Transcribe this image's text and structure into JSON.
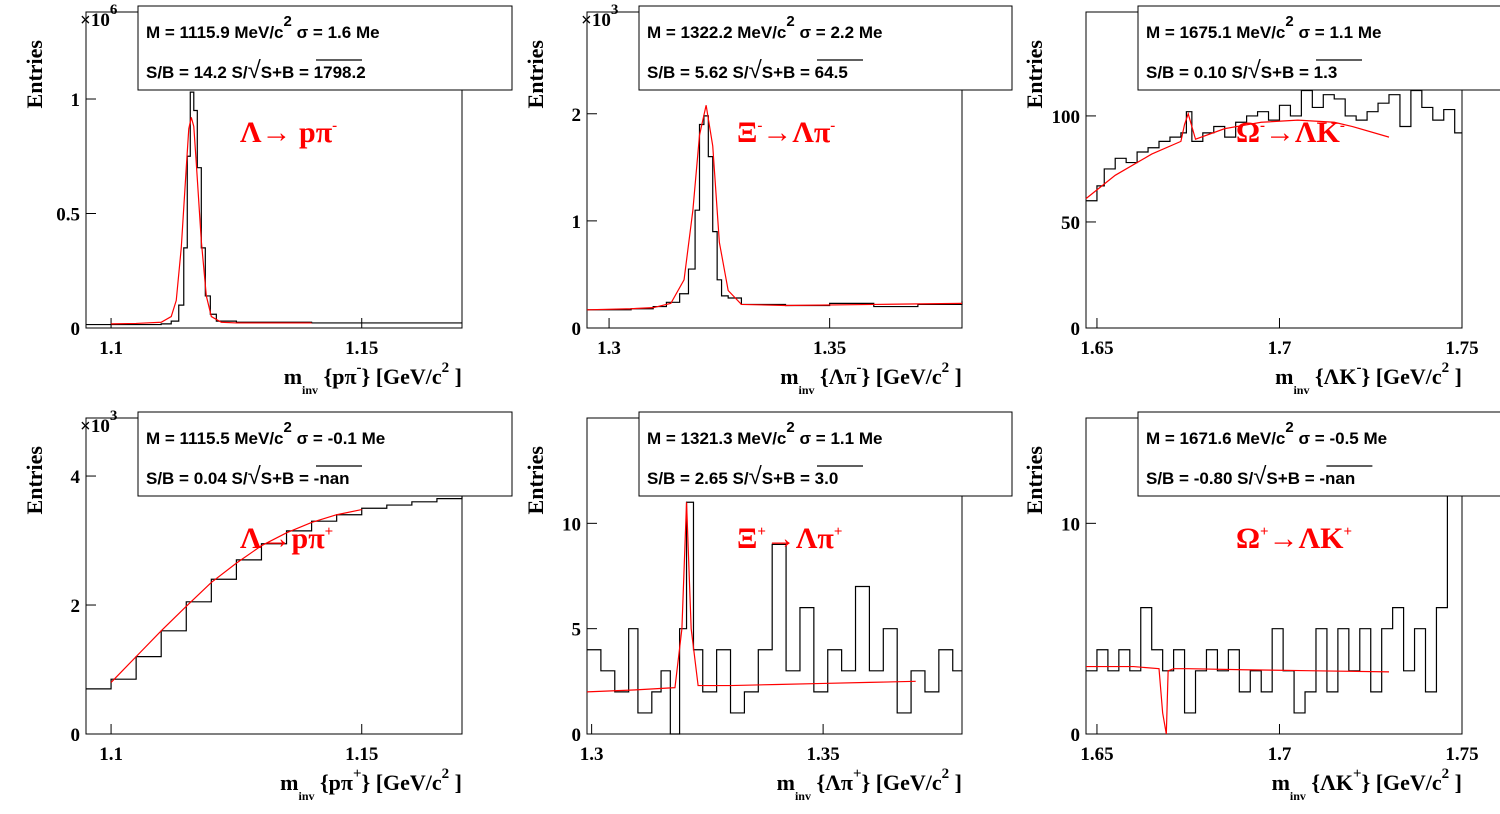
{
  "chart_data": [
    {
      "type": "line",
      "ylabel": "Entries",
      "xlabel_main": "m",
      "xlabel_sub": "inv",
      "xlabel_arg": "{pπ",
      "xlabel_arg_sup": "-",
      "xlabel_unit": "} [GeV/c",
      "xlabel_unit_sup": "2",
      "xlabel_end": "]",
      "exponent_label": "×10",
      "exponent_sup": "6",
      "xlim": [
        1.095,
        1.17
      ],
      "ylim": [
        0,
        1.38
      ],
      "x_ticks": [
        1.1,
        1.15
      ],
      "x_tick_labels": [
        "1.1",
        "1.15"
      ],
      "y_ticks": [
        0,
        0.5,
        1
      ],
      "y_tick_labels": [
        "0",
        "0.5",
        "1"
      ],
      "stats": {
        "line1": "M = 1115.9 MeV/c",
        "line1_sup": "2",
        "line1_sigma": "σ = 1.6 Me",
        "line2_sb": "S/B = 14.2",
        "line2_sig": "S/",
        "line2_sqrt": "S+B = 1798.2"
      },
      "decay": {
        "main": "Λ→ pπ",
        "sup": "-"
      },
      "series": [
        {
          "style": "histogram",
          "color": "#000000",
          "x": [
            1.095,
            1.11,
            1.112,
            1.1135,
            1.1145,
            1.1152,
            1.1158,
            1.1165,
            1.1172,
            1.118,
            1.1188,
            1.1198,
            1.121,
            1.125,
            1.14,
            1.17
          ],
          "y": [
            0.015,
            0.018,
            0.03,
            0.1,
            0.35,
            0.75,
            1.03,
            0.95,
            0.7,
            0.35,
            0.14,
            0.06,
            0.03,
            0.025,
            0.022,
            0.022
          ]
        },
        {
          "style": "fit",
          "color": "#ff0000",
          "x": [
            1.1,
            1.105,
            1.11,
            1.112,
            1.113,
            1.114,
            1.115,
            1.1155,
            1.116,
            1.1165,
            1.117,
            1.118,
            1.119,
            1.12,
            1.122,
            1.125,
            1.13,
            1.14
          ],
          "y": [
            0.018,
            0.02,
            0.025,
            0.05,
            0.12,
            0.35,
            0.7,
            0.87,
            0.92,
            0.88,
            0.72,
            0.38,
            0.14,
            0.05,
            0.025,
            0.022,
            0.022,
            0.022
          ]
        }
      ]
    },
    {
      "type": "line",
      "ylabel": "Entries",
      "xlabel_main": "m",
      "xlabel_sub": "inv",
      "xlabel_arg": "{Λπ",
      "xlabel_arg_sup": "-",
      "xlabel_unit": "} [GeV/c",
      "xlabel_unit_sup": "2",
      "xlabel_end": "]",
      "exponent_label": "×10",
      "exponent_sup": "3",
      "xlim": [
        1.295,
        1.38
      ],
      "ylim": [
        0,
        2.95
      ],
      "x_ticks": [
        1.3,
        1.35
      ],
      "x_tick_labels": [
        "1.3",
        "1.35"
      ],
      "y_ticks": [
        0,
        1,
        2
      ],
      "y_tick_labels": [
        "0",
        "1",
        "2"
      ],
      "stats": {
        "line1": "M = 1322.2 MeV/c",
        "line1_sup": "2",
        "line1_sigma": "σ = 2.2 Me",
        "line2_sb": "S/B = 5.62",
        "line2_sig": "S/",
        "line2_sqrt": "S+B = 64.5"
      },
      "decay": {
        "main": "Ξ",
        "sup": "-",
        "main2": "→Λπ",
        "sup2": "-"
      },
      "series": [
        {
          "style": "histogram",
          "color": "#000000",
          "x": [
            1.295,
            1.305,
            1.31,
            1.313,
            1.316,
            1.318,
            1.3195,
            1.3205,
            1.3215,
            1.3225,
            1.3235,
            1.3245,
            1.3255,
            1.327,
            1.33,
            1.34,
            1.35,
            1.36,
            1.37,
            1.38
          ],
          "y": [
            0.17,
            0.18,
            0.2,
            0.24,
            0.32,
            0.55,
            1.1,
            1.9,
            1.98,
            1.6,
            0.9,
            0.45,
            0.3,
            0.28,
            0.22,
            0.21,
            0.23,
            0.2,
            0.22,
            0.25
          ]
        },
        {
          "style": "fit",
          "color": "#ff0000",
          "x": [
            1.295,
            1.305,
            1.31,
            1.314,
            1.317,
            1.319,
            1.3205,
            1.322,
            1.3235,
            1.325,
            1.327,
            1.33,
            1.34,
            1.36,
            1.38
          ],
          "y": [
            0.17,
            0.18,
            0.19,
            0.23,
            0.45,
            1.1,
            1.8,
            2.08,
            1.7,
            0.8,
            0.35,
            0.22,
            0.21,
            0.22,
            0.23
          ]
        }
      ]
    },
    {
      "type": "line",
      "ylabel": "Entries",
      "xlabel_main": "m",
      "xlabel_sub": "inv",
      "xlabel_arg": "{ΛK",
      "xlabel_arg_sup": "-",
      "xlabel_unit": "} [GeV/c",
      "xlabel_unit_sup": "2",
      "xlabel_end": "]",
      "exponent_label": "",
      "exponent_sup": "",
      "xlim": [
        1.647,
        1.75
      ],
      "ylim": [
        0,
        149
      ],
      "x_ticks": [
        1.65,
        1.7,
        1.75
      ],
      "x_tick_labels": [
        "1.65",
        "1.7",
        "1.75"
      ],
      "y_ticks": [
        0,
        50,
        100
      ],
      "y_tick_labels": [
        "0",
        "50",
        "100"
      ],
      "stats": {
        "line1": "M = 1675.1 MeV/c",
        "line1_sup": "2",
        "line1_sigma": "σ = 1.1 Me",
        "line2_sb": "S/B = 0.10",
        "line2_sig": "S/",
        "line2_sqrt": "S+B = 1.3"
      },
      "decay": {
        "main": "Ω",
        "sup": "-",
        "main2": "→ΛK",
        "sup2": "-"
      },
      "series": [
        {
          "style": "histogram",
          "color": "#000000",
          "x": [
            1.647,
            1.65,
            1.652,
            1.655,
            1.658,
            1.661,
            1.664,
            1.667,
            1.67,
            1.673,
            1.6745,
            1.676,
            1.679,
            1.682,
            1.685,
            1.688,
            1.691,
            1.694,
            1.697,
            1.7,
            1.703,
            1.706,
            1.709,
            1.712,
            1.715,
            1.718,
            1.721,
            1.724,
            1.727,
            1.73,
            1.733,
            1.736,
            1.739,
            1.742,
            1.745,
            1.748
          ],
          "y": [
            60,
            67,
            75,
            80,
            78,
            83,
            85,
            88,
            90,
            92,
            102,
            88,
            92,
            95,
            90,
            97,
            100,
            102,
            98,
            105,
            100,
            112,
            104,
            110,
            108,
            100,
            98,
            102,
            106,
            110,
            95,
            112,
            104,
            98,
            103,
            92
          ]
        },
        {
          "style": "fit",
          "color": "#ff0000",
          "x": [
            1.647,
            1.655,
            1.665,
            1.673,
            1.674,
            1.675,
            1.676,
            1.677,
            1.685,
            1.695,
            1.705,
            1.715,
            1.72,
            1.73
          ],
          "y": [
            61,
            72,
            82,
            88,
            96,
            101,
            95,
            89,
            94,
            97,
            98,
            97,
            95,
            90
          ]
        }
      ]
    },
    {
      "type": "line",
      "ylabel": "Entries",
      "xlabel_main": "m",
      "xlabel_sub": "inv",
      "xlabel_arg": "{pπ",
      "xlabel_arg_sup": "+",
      "xlabel_unit": "} [GeV/c",
      "xlabel_unit_sup": "2",
      "xlabel_end": "]",
      "exponent_label": "×10",
      "exponent_sup": "3",
      "xlim": [
        1.095,
        1.17
      ],
      "ylim": [
        0,
        4.9
      ],
      "x_ticks": [
        1.1,
        1.15
      ],
      "x_tick_labels": [
        "1.1",
        "1.15"
      ],
      "y_ticks": [
        0,
        2,
        4
      ],
      "y_tick_labels": [
        "0",
        "2",
        "4"
      ],
      "stats": {
        "line1": "M = 1115.5 MeV/c",
        "line1_sup": "2",
        "line1_sigma": "σ = -0.1 Me",
        "line2_sb": "S/B = 0.04",
        "line2_sig": "S/",
        "line2_sqrt": "S+B = -nan"
      },
      "decay": {
        "main": "Λ→pπ",
        "sup": "+"
      },
      "series": [
        {
          "style": "histogram",
          "color": "#000000",
          "x": [
            1.095,
            1.1,
            1.105,
            1.11,
            1.115,
            1.12,
            1.125,
            1.13,
            1.135,
            1.14,
            1.145,
            1.15,
            1.155,
            1.16,
            1.165,
            1.17
          ],
          "y": [
            0.7,
            0.85,
            1.2,
            1.6,
            2.05,
            2.4,
            2.7,
            2.95,
            3.15,
            3.3,
            3.4,
            3.5,
            3.55,
            3.6,
            3.65,
            3.68
          ]
        },
        {
          "style": "fit",
          "color": "#ff0000",
          "x": [
            1.1,
            1.105,
            1.11,
            1.115,
            1.12,
            1.125,
            1.13,
            1.135,
            1.14,
            1.145,
            1.15
          ],
          "y": [
            0.8,
            1.2,
            1.6,
            1.98,
            2.35,
            2.65,
            2.92,
            3.12,
            3.28,
            3.4,
            3.48
          ]
        }
      ]
    },
    {
      "type": "line",
      "ylabel": "Entries",
      "xlabel_main": "m",
      "xlabel_sub": "inv",
      "xlabel_arg": "{Λπ",
      "xlabel_arg_sup": "+",
      "xlabel_unit": "} [GeV/c",
      "xlabel_unit_sup": "2",
      "xlabel_end": "]",
      "exponent_label": "",
      "exponent_sup": "",
      "xlim": [
        1.299,
        1.38
      ],
      "ylim": [
        0,
        15
      ],
      "x_ticks": [
        1.3,
        1.35
      ],
      "x_tick_labels": [
        "1.3",
        "1.35"
      ],
      "y_ticks": [
        0,
        5,
        10
      ],
      "y_tick_labels": [
        "0",
        "5",
        "10"
      ],
      "stats": {
        "line1": "M = 1321.3 MeV/c",
        "line1_sup": "2",
        "line1_sigma": "σ = 1.1 Me",
        "line2_sb": "S/B = 2.65",
        "line2_sig": "S/",
        "line2_sqrt": "S+B = 3.0"
      },
      "decay": {
        "main": "Ξ",
        "sup": "+",
        "main2": "→Λπ",
        "sup2": "+"
      },
      "series": [
        {
          "style": "histogram",
          "color": "#000000",
          "x": [
            1.299,
            1.302,
            1.305,
            1.308,
            1.31,
            1.313,
            1.315,
            1.317,
            1.319,
            1.3205,
            1.322,
            1.324,
            1.327,
            1.33,
            1.333,
            1.336,
            1.339,
            1.342,
            1.345,
            1.348,
            1.351,
            1.354,
            1.357,
            1.36,
            1.363,
            1.366,
            1.369,
            1.372,
            1.375,
            1.378
          ],
          "y": [
            4,
            3,
            2,
            5,
            1,
            2,
            3,
            0,
            5,
            11,
            4,
            2,
            4,
            1,
            2,
            4,
            9,
            3,
            6,
            2,
            4,
            3,
            7,
            3,
            5,
            1,
            3,
            2,
            4,
            3
          ]
        },
        {
          "style": "fit",
          "color": "#ff0000",
          "x": [
            1.299,
            1.31,
            1.318,
            1.3195,
            1.3205,
            1.3215,
            1.323,
            1.33,
            1.34,
            1.35,
            1.36,
            1.37
          ],
          "y": [
            2,
            2.1,
            2.2,
            5,
            11,
            5,
            2.3,
            2.3,
            2.35,
            2.4,
            2.45,
            2.5
          ]
        }
      ]
    },
    {
      "type": "line",
      "ylabel": "Entries",
      "xlabel_main": "m",
      "xlabel_sub": "inv",
      "xlabel_arg": "{ΛK",
      "xlabel_arg_sup": "+",
      "xlabel_unit": "} [GeV/c",
      "xlabel_unit_sup": "2",
      "xlabel_end": "]",
      "exponent_label": "",
      "exponent_sup": "",
      "xlim": [
        1.647,
        1.75
      ],
      "ylim": [
        0,
        15
      ],
      "x_ticks": [
        1.65,
        1.7,
        1.75
      ],
      "x_tick_labels": [
        "1.65",
        "1.7",
        "1.75"
      ],
      "y_ticks": [
        0,
        10
      ],
      "y_tick_labels": [
        "0",
        "10"
      ],
      "stats": {
        "line1": "M = 1671.6 MeV/c",
        "line1_sup": "2",
        "line1_sigma": "σ = -0.5 Me",
        "line2_sb": "S/B = -0.80",
        "line2_sig": "S/",
        "line2_sqrt": "S+B = -nan"
      },
      "decay": {
        "main": "Ω",
        "sup": "+",
        "main2": "→ΛK",
        "sup2": "+"
      },
      "series": [
        {
          "style": "histogram",
          "color": "#000000",
          "x": [
            1.647,
            1.65,
            1.653,
            1.656,
            1.659,
            1.662,
            1.665,
            1.668,
            1.671,
            1.674,
            1.677,
            1.68,
            1.683,
            1.686,
            1.689,
            1.692,
            1.695,
            1.698,
            1.701,
            1.704,
            1.707,
            1.71,
            1.713,
            1.716,
            1.719,
            1.722,
            1.725,
            1.728,
            1.731,
            1.734,
            1.737,
            1.74,
            1.743,
            1.746
          ],
          "y": [
            3,
            4,
            3,
            4,
            3,
            6,
            4,
            3,
            4,
            1,
            3,
            4,
            3,
            4,
            2,
            3,
            2,
            5,
            3,
            1,
            2,
            5,
            2,
            5,
            3,
            5,
            2,
            5,
            6,
            3,
            5,
            2,
            6,
            13
          ]
        },
        {
          "style": "fit",
          "color": "#ff0000",
          "x": [
            1.647,
            1.66,
            1.667,
            1.668,
            1.669,
            1.6695,
            1.671,
            1.675,
            1.69,
            1.71,
            1.73
          ],
          "y": [
            3.2,
            3.2,
            3.1,
            1,
            -0.3,
            3,
            3.1,
            3.1,
            3.05,
            3.0,
            2.95
          ]
        }
      ]
    }
  ]
}
